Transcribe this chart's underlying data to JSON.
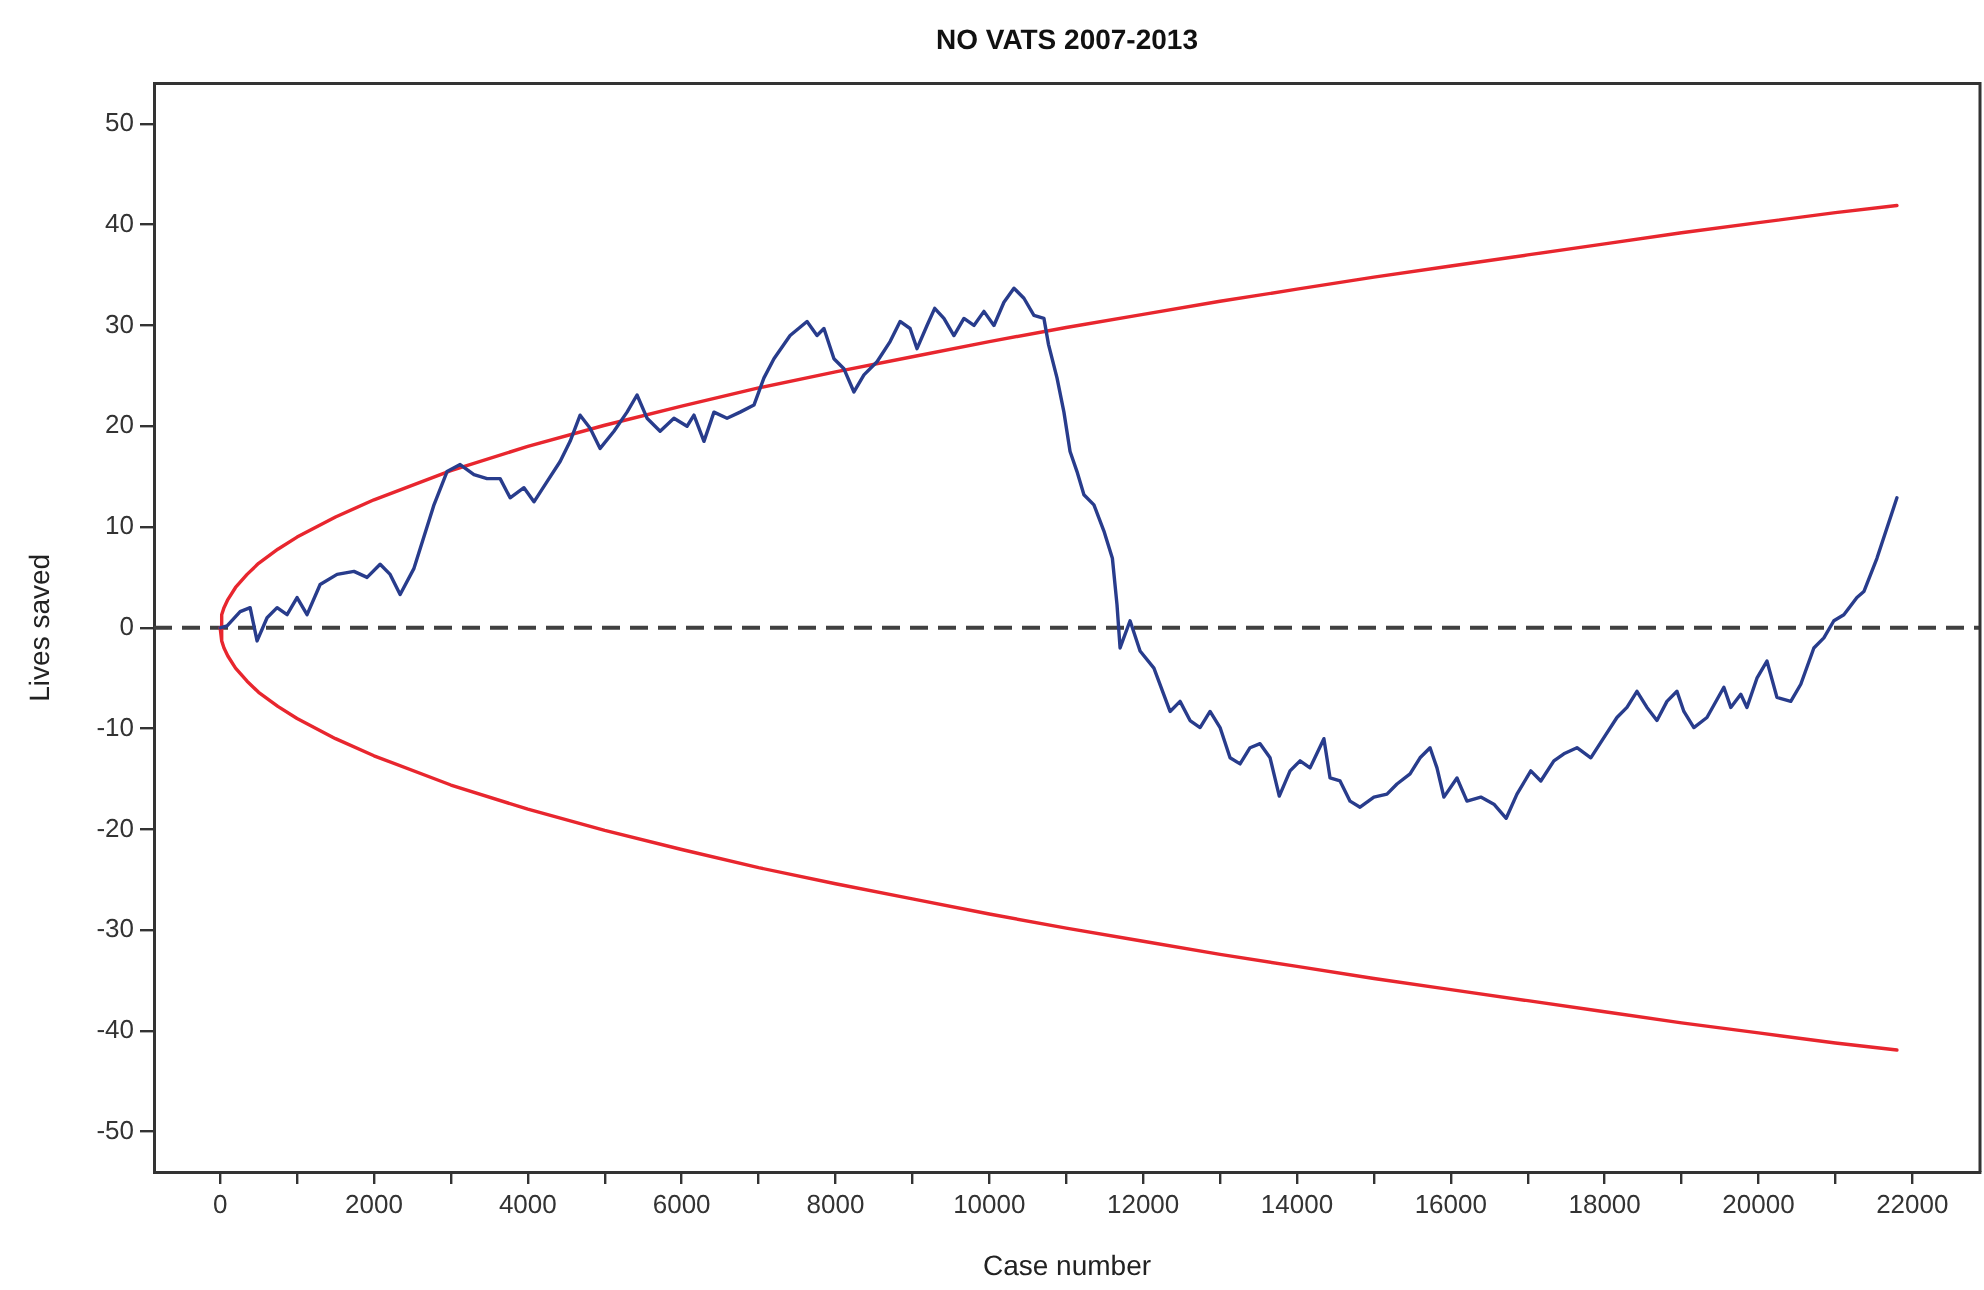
{
  "chart_data": {
    "type": "line",
    "title": "NO VATS 2007-2013",
    "xlabel": "Case number",
    "ylabel": "Lives saved",
    "xlim": [
      -860,
      22880
    ],
    "xticks": [
      0,
      {
        "value": 1000,
        "label": null
      },
      2000,
      {
        "value": 3000,
        "label": null
      },
      4000,
      {
        "value": 5000,
        "label": null
      },
      6000,
      {
        "value": 7000,
        "label": null
      },
      8000,
      {
        "value": 9000,
        "label": null
      },
      10000,
      {
        "value": 11000,
        "label": null
      },
      12000,
      {
        "value": 13000,
        "label": null
      },
      14000,
      {
        "value": 15000,
        "label": null
      },
      16000,
      {
        "value": 17000,
        "label": null
      },
      18000,
      {
        "value": 19000,
        "label": null
      },
      20000,
      {
        "value": 21000,
        "label": null
      },
      22000
    ],
    "ylim": [
      -54,
      54
    ],
    "yticks": [
      -50,
      -40,
      -30,
      -20,
      -10,
      0,
      10,
      20,
      30,
      40,
      50
    ],
    "grid": false,
    "legend": false,
    "marker": "none",
    "ref_lines": [
      {
        "axis": "y",
        "value": 0,
        "color": "#404040",
        "line_style": "dashed"
      }
    ],
    "series": [
      {
        "color": "#283c8c",
        "x": [
          0,
          90,
          260,
          390,
          480,
          610,
          740,
          870,
          1000,
          1130,
          1300,
          1520,
          1740,
          1910,
          2080,
          2210,
          2340,
          2520,
          2780,
          2950,
          3120,
          3300,
          3470,
          3640,
          3770,
          3950,
          4080,
          4250,
          4420,
          4550,
          4680,
          4810,
          4940,
          5120,
          5290,
          5420,
          5550,
          5720,
          5900,
          6070,
          6160,
          6290,
          6420,
          6590,
          6760,
          6940,
          7070,
          7200,
          7410,
          7630,
          7760,
          7850,
          7980,
          8110,
          8240,
          8370,
          8540,
          8710,
          8840,
          8970,
          9060,
          9190,
          9290,
          9410,
          9540,
          9670,
          9800,
          9930,
          10060,
          10190,
          10320,
          10450,
          10580,
          10710,
          10770,
          10880,
          10970,
          11050,
          11140,
          11230,
          11360,
          11490,
          11600,
          11660,
          11700,
          11830,
          11960,
          12140,
          12350,
          12480,
          12610,
          12740,
          12870,
          13000,
          13130,
          13260,
          13390,
          13520,
          13650,
          13770,
          13910,
          14040,
          14170,
          14350,
          14430,
          14560,
          14690,
          14820,
          15000,
          15170,
          15300,
          15470,
          15600,
          15730,
          15820,
          15910,
          16080,
          16210,
          16390,
          16560,
          16720,
          16860,
          17040,
          17170,
          17340,
          17470,
          17640,
          17820,
          17990,
          18160,
          18290,
          18420,
          18550,
          18680,
          18810,
          18940,
          19030,
          19160,
          19330,
          19550,
          19640,
          19770,
          19850,
          19980,
          20110,
          20240,
          20420,
          20550,
          20720,
          20850,
          20980,
          21110,
          21280,
          21370,
          21540,
          21800
        ],
        "values": [
          0,
          0.2,
          1.6,
          2,
          -1.3,
          1,
          2,
          1.3,
          3,
          1.3,
          4.3,
          5.3,
          5.6,
          5,
          6.3,
          5.3,
          3.3,
          5.9,
          12.2,
          15.5,
          16.2,
          15.2,
          14.8,
          14.8,
          12.9,
          13.9,
          12.5,
          14.5,
          16.5,
          18.5,
          21.1,
          19.8,
          17.8,
          19.5,
          21.4,
          23.1,
          20.8,
          19.5,
          20.8,
          20,
          21.1,
          18.5,
          21.4,
          20.8,
          21.4,
          22.1,
          24.8,
          26.7,
          29,
          30.4,
          29,
          29.7,
          26.7,
          25.7,
          23.4,
          25.1,
          26.4,
          28.4,
          30.4,
          29.7,
          27.7,
          30,
          31.7,
          30.7,
          29,
          30.7,
          30,
          31.4,
          30,
          32.3,
          33.7,
          32.7,
          31,
          30.7,
          28.1,
          24.8,
          21.4,
          17.5,
          15.5,
          13.2,
          12.2,
          9.6,
          6.9,
          2.3,
          -2,
          0.7,
          -2.3,
          -4,
          -8.3,
          -7.3,
          -9.2,
          -9.9,
          -8.3,
          -9.9,
          -12.9,
          -13.5,
          -11.9,
          -11.5,
          -12.9,
          -16.7,
          -14.2,
          -13.2,
          -13.9,
          -11,
          -14.9,
          -15.2,
          -17.2,
          -17.8,
          -16.8,
          -16.5,
          -15.5,
          -14.5,
          -12.9,
          -11.9,
          -13.9,
          -16.8,
          -14.9,
          -17.2,
          -16.8,
          -17.5,
          -18.9,
          -16.5,
          -14.2,
          -15.2,
          -13.2,
          -12.5,
          -11.9,
          -12.9,
          -10.9,
          -8.9,
          -7.9,
          -6.3,
          -7.9,
          -9.2,
          -7.3,
          -6.3,
          -8.3,
          -9.9,
          -8.9,
          -5.9,
          -7.9,
          -6.6,
          -7.9,
          -5,
          -3.3,
          -6.9,
          -7.3,
          -5.6,
          -2,
          -1,
          0.7,
          1.3,
          3,
          3.6,
          6.9,
          12.9
        ]
      },
      {
        "color": "#e8262e",
        "x": [
          0,
          20,
          50,
          100,
          200,
          350,
          500,
          750,
          1000,
          1500,
          2000,
          3000,
          4000,
          5000,
          6000,
          7000,
          8000,
          9000,
          10000,
          11000,
          12000,
          13000,
          14000,
          15000,
          16000,
          17000,
          18000,
          19000,
          20000,
          21000,
          21800
        ],
        "values": [
          0,
          1.3,
          2,
          2.8,
          4,
          5.3,
          6.4,
          7.8,
          9,
          11,
          12.7,
          15.6,
          18,
          20.1,
          22,
          23.8,
          25.4,
          26.9,
          28.4,
          29.8,
          31.1,
          32.4,
          33.6,
          34.8,
          35.9,
          37,
          38.1,
          39.2,
          40.2,
          41.2,
          41.9
        ]
      },
      {
        "color": "#e8262e",
        "x": [
          0,
          20,
          50,
          100,
          200,
          350,
          500,
          750,
          1000,
          1500,
          2000,
          3000,
          4000,
          5000,
          6000,
          7000,
          8000,
          9000,
          10000,
          11000,
          12000,
          13000,
          14000,
          15000,
          16000,
          17000,
          18000,
          19000,
          20000,
          21000,
          21800
        ],
        "values": [
          0,
          -1.3,
          -2,
          -2.8,
          -4,
          -5.3,
          -6.4,
          -7.8,
          -9,
          -11,
          -12.7,
          -15.6,
          -18,
          -20.1,
          -22,
          -23.8,
          -25.4,
          -26.9,
          -28.4,
          -29.8,
          -31.1,
          -32.4,
          -33.6,
          -34.8,
          -35.9,
          -37,
          -38.1,
          -39.2,
          -40.2,
          -41.2,
          -41.9
        ]
      }
    ]
  }
}
